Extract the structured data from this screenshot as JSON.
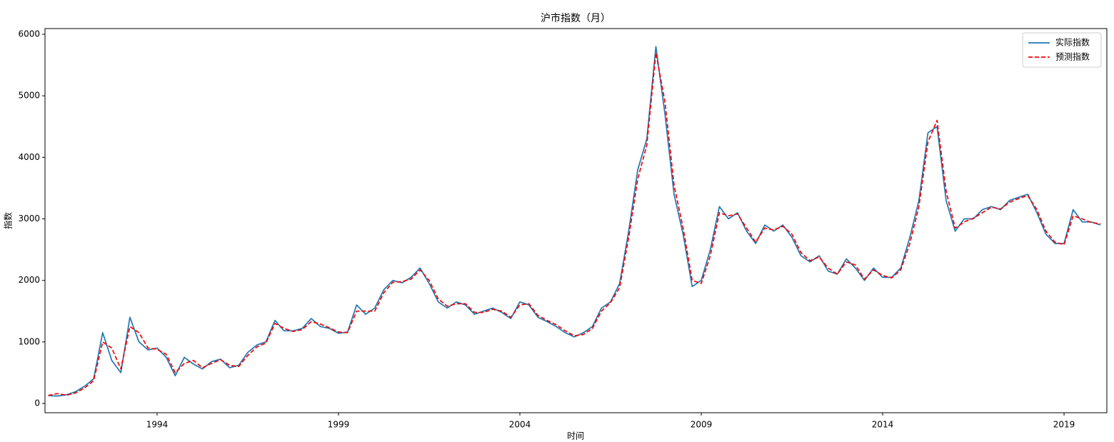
{
  "chart_data": {
    "type": "line",
    "title": "沪市指数（月）",
    "x_label": "时间",
    "y_label": "指数",
    "x": [
      1991,
      1991.25,
      1991.5,
      1991.75,
      1992,
      1992.25,
      1992.5,
      1992.75,
      1993,
      1993.25,
      1993.5,
      1993.75,
      1994,
      1994.25,
      1994.5,
      1994.75,
      1995,
      1995.25,
      1995.5,
      1995.75,
      1996,
      1996.25,
      1996.5,
      1996.75,
      1997,
      1997.25,
      1997.5,
      1997.75,
      1998,
      1998.25,
      1998.5,
      1998.75,
      1999,
      1999.25,
      1999.5,
      1999.75,
      2000,
      2000.25,
      2000.5,
      2000.75,
      2001,
      2001.25,
      2001.5,
      2001.75,
      2002,
      2002.25,
      2002.5,
      2002.75,
      2003,
      2003.25,
      2003.5,
      2003.75,
      2004,
      2004.25,
      2004.5,
      2004.75,
      2005,
      2005.25,
      2005.5,
      2005.75,
      2006,
      2006.25,
      2006.5,
      2006.75,
      2007,
      2007.25,
      2007.5,
      2007.75,
      2008,
      2008.25,
      2008.5,
      2008.75,
      2009,
      2009.25,
      2009.5,
      2009.75,
      2010,
      2010.25,
      2010.5,
      2010.75,
      2011,
      2011.25,
      2011.5,
      2011.75,
      2012,
      2012.25,
      2012.5,
      2012.75,
      2013,
      2013.25,
      2013.5,
      2013.75,
      2014,
      2014.25,
      2014.5,
      2014.75,
      2015,
      2015.25,
      2015.5,
      2015.75,
      2016,
      2016.25,
      2016.5,
      2016.75,
      2017,
      2017.25,
      2017.5,
      2017.75,
      2018,
      2018.25,
      2018.5,
      2018.75,
      2019,
      2019.25,
      2019.5,
      2019.75,
      2020
    ],
    "series": [
      {
        "name": "实际指数",
        "color": "#1f77b4",
        "dashed": false,
        "values": [
          127,
          120,
          140,
          190,
          280,
          400,
          1150,
          700,
          500,
          1400,
          1000,
          870,
          900,
          750,
          450,
          750,
          640,
          560,
          680,
          720,
          580,
          620,
          830,
          950,
          1000,
          1350,
          1180,
          1180,
          1220,
          1380,
          1250,
          1220,
          1140,
          1160,
          1600,
          1450,
          1550,
          1850,
          2000,
          1960,
          2050,
          2200,
          1950,
          1650,
          1550,
          1650,
          1600,
          1450,
          1500,
          1550,
          1480,
          1380,
          1650,
          1600,
          1400,
          1330,
          1250,
          1150,
          1080,
          1150,
          1250,
          1550,
          1650,
          1950,
          2800,
          3800,
          4300,
          5800,
          4700,
          3400,
          2750,
          1900,
          2000,
          2500,
          3200,
          3000,
          3100,
          2800,
          2600,
          2900,
          2800,
          2900,
          2700,
          2400,
          2300,
          2400,
          2150,
          2100,
          2350,
          2200,
          2000,
          2200,
          2050,
          2050,
          2200,
          2700,
          3300,
          4400,
          4500,
          3300,
          2800,
          3000,
          3000,
          3150,
          3200,
          3150,
          3300,
          3350,
          3400,
          3100,
          2750,
          2600,
          2600,
          3150,
          2950,
          2950,
          2900
        ]
      },
      {
        "name": "预测指数",
        "color": "#ff0000",
        "dashed": true,
        "values": [
          130,
          160,
          135,
          170,
          250,
          370,
          1000,
          900,
          560,
          1250,
          1150,
          900,
          880,
          800,
          500,
          650,
          700,
          580,
          650,
          710,
          620,
          600,
          780,
          920,
          980,
          1300,
          1220,
          1170,
          1200,
          1330,
          1290,
          1230,
          1160,
          1150,
          1500,
          1500,
          1500,
          1800,
          1970,
          1980,
          2020,
          2170,
          2000,
          1700,
          1580,
          1620,
          1620,
          1480,
          1480,
          1530,
          1500,
          1400,
          1600,
          1620,
          1430,
          1350,
          1280,
          1180,
          1100,
          1120,
          1220,
          1500,
          1640,
          1880,
          2700,
          3650,
          4200,
          5700,
          4900,
          3550,
          2850,
          2000,
          1950,
          2400,
          3100,
          3050,
          3080,
          2850,
          2620,
          2850,
          2820,
          2880,
          2750,
          2450,
          2320,
          2380,
          2200,
          2100,
          2300,
          2250,
          2020,
          2170,
          2080,
          2040,
          2170,
          2600,
          3200,
          4250,
          4600,
          3450,
          2850,
          2950,
          3010,
          3100,
          3190,
          3160,
          3270,
          3330,
          3380,
          3150,
          2800,
          2620,
          2580,
          3050,
          3000,
          2940,
          2920
        ]
      }
    ],
    "xlim": [
      1990.91,
      2020.18
    ],
    "ylim": [
      -151,
      6093
    ],
    "xticks": [
      1994,
      1999,
      2004,
      2009,
      2014,
      2019
    ],
    "yticks": [
      0,
      1000,
      2000,
      3000,
      4000,
      5000,
      6000
    ],
    "legend": "upper right"
  }
}
